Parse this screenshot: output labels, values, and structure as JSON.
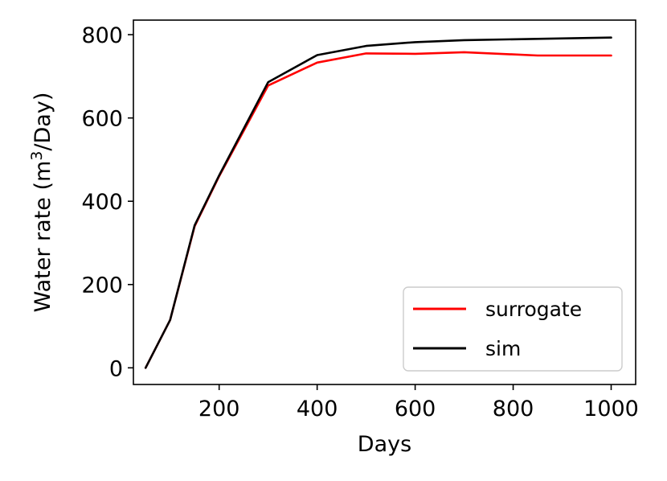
{
  "chart_data": {
    "type": "line",
    "title": "",
    "xlabel": "Days",
    "ylabel": "Water rate (m³/Day)",
    "ylabel_parts": {
      "before": "Water rate (m",
      "sup": "3",
      "after": "/Day)"
    },
    "xlim": [
      25,
      1050
    ],
    "ylim": [
      -40,
      835
    ],
    "x_ticks": [
      200,
      400,
      600,
      800,
      1000
    ],
    "y_ticks": [
      0,
      200,
      400,
      600,
      800
    ],
    "x_tick_labels": [
      "200",
      "400",
      "600",
      "800",
      "1000"
    ],
    "y_tick_labels": [
      "0",
      "200",
      "400",
      "600",
      "800"
    ],
    "grid": false,
    "legend_position": "lower-right",
    "x": [
      50,
      100,
      150,
      200,
      300,
      400,
      500,
      600,
      700,
      850,
      1000
    ],
    "series": [
      {
        "name": "surrogate",
        "color": "#ff0000",
        "values": [
          0,
          115,
          340,
          460,
          678,
          733,
          755,
          754,
          758,
          750,
          750
        ]
      },
      {
        "name": "sim",
        "color": "#000000",
        "values": [
          0,
          115,
          342,
          462,
          686,
          751,
          773,
          782,
          787,
          790,
          793
        ]
      }
    ]
  }
}
